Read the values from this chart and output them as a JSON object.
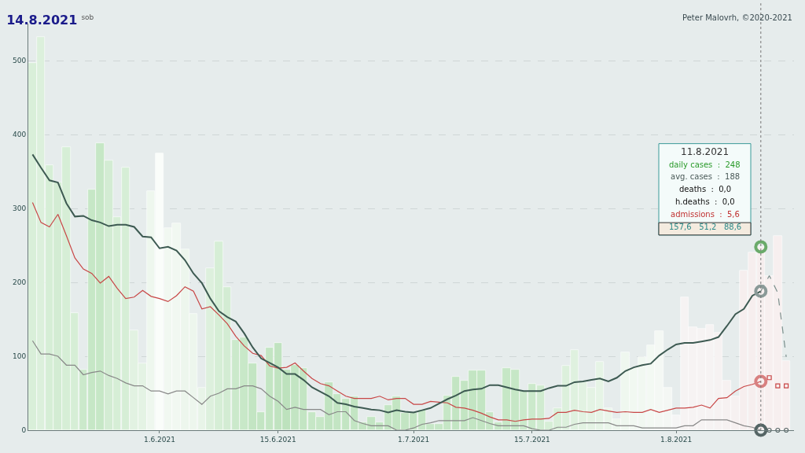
{
  "chart_data": {
    "type": "bar",
    "title": "14.8.2021",
    "subtitle": "sob",
    "x": [
      "2021-05-17",
      "2021-05-18",
      "2021-05-19",
      "2021-05-20",
      "2021-05-21",
      "2021-05-22",
      "2021-05-23",
      "2021-05-24",
      "2021-05-25",
      "2021-05-26",
      "2021-05-27",
      "2021-05-28",
      "2021-05-29",
      "2021-05-30",
      "2021-05-31",
      "2021-06-01",
      "2021-06-02",
      "2021-06-03",
      "2021-06-04",
      "2021-06-05",
      "2021-06-06",
      "2021-06-07",
      "2021-06-08",
      "2021-06-09",
      "2021-06-10",
      "2021-06-11",
      "2021-06-12",
      "2021-06-13",
      "2021-06-14",
      "2021-06-15",
      "2021-06-16",
      "2021-06-17",
      "2021-06-18",
      "2021-06-19",
      "2021-06-20",
      "2021-06-21",
      "2021-06-22",
      "2021-06-23",
      "2021-06-24",
      "2021-06-25",
      "2021-06-26",
      "2021-06-27",
      "2021-06-28",
      "2021-06-29",
      "2021-06-30",
      "2021-07-01",
      "2021-07-02",
      "2021-07-03",
      "2021-07-04",
      "2021-07-05",
      "2021-07-06",
      "2021-07-07",
      "2021-07-08",
      "2021-07-09",
      "2021-07-10",
      "2021-07-11",
      "2021-07-12",
      "2021-07-13",
      "2021-07-14",
      "2021-07-15",
      "2021-07-16",
      "2021-07-17",
      "2021-07-18",
      "2021-07-19",
      "2021-07-20",
      "2021-07-21",
      "2021-07-22",
      "2021-07-23",
      "2021-07-24",
      "2021-07-25",
      "2021-07-26",
      "2021-07-27",
      "2021-07-28",
      "2021-07-29",
      "2021-07-30",
      "2021-07-31",
      "2021-08-01",
      "2021-08-02",
      "2021-08-03",
      "2021-08-04",
      "2021-08-05",
      "2021-08-06",
      "2021-08-07",
      "2021-08-08",
      "2021-08-09",
      "2021-08-10",
      "2021-08-11",
      "2021-08-12",
      "2021-08-13",
      "2021-08-14"
    ],
    "series": [
      {
        "colors": [
          "#d9efd9",
          "#dcf0dc",
          "#d6eed6",
          "#d3ecd3",
          "#d6eed6",
          "#d6eed6",
          "#cbe9cb",
          "#c6e7c6",
          "#c6e7c6",
          "#d3ecd3",
          "#d6eed6",
          "#d6eed6",
          "#e2f2e2",
          "#e4f3e4",
          "#eef7ee",
          "#fafdfa",
          "#f1f8f1",
          "#f1f8f1",
          "#edf6ed",
          "#edf6ed",
          "#e8f4e8",
          "#ddf0dd",
          "#d6eed6",
          "#d3ecd3",
          "#cbe9cb",
          "#c8e8c8",
          "#c3e5c3",
          "#c3e5c3",
          "#c3e5c3",
          "#c0e3c0",
          "#bde2bd",
          "#c3e5c3",
          "#c3e5c3",
          "#c6e7c6",
          "#c6e7c6",
          "#c0e3c0",
          "#c3e5c3",
          "#c3e5c3",
          "#c3e5c3",
          "#c3e5c3",
          "#c3e5c3",
          "#c3e5c3",
          "#c3e5c3",
          "#c3e5c3",
          "#c3e5c3",
          "#c3e5c3",
          "#c6e7c6",
          "#c6e7c6",
          "#c6e7c6",
          "#c6e7c6",
          "#c3e5c3",
          "#c3e5c3",
          "#c3e5c3",
          "#c3e5c3",
          "#c6e7c6",
          "#c6e7c6",
          "#c6e7c6",
          "#c6e7c6",
          "#cbe9cb",
          "#cbe9cb",
          "#d0ebd0",
          "#d6eed6",
          "#d9efd9",
          "#dcf0dc",
          "#dff1df",
          "#e2f2e2",
          "#e4f3e4",
          "#e6f4e6",
          "#eaf5ea",
          "#edf6ed",
          "#eff7ef",
          "#f1f8f1",
          "#f1f8f1",
          "#f3f9f3",
          "#f4f8f4",
          "#f4f7f4",
          "#f5f5f5",
          "#f6f3f3",
          "#f6f3f3",
          "#f6f3f3",
          "#f6f3f3",
          "#f6f2f2",
          "#f6f1f1",
          "#f6f1f1",
          "#f6eeee",
          "#f6eeee",
          "#f6eeee",
          "#f7efef",
          "#f7efef",
          "#f7efef"
        ],
        "values": [
          497,
          532,
          358,
          335,
          383,
          159,
          82,
          326,
          388,
          365,
          288,
          355,
          135,
          90,
          323,
          374,
          273,
          280,
          245,
          157,
          57,
          219,
          255,
          194,
          122,
          126,
          90,
          24,
          112,
          118,
          82,
          88,
          84,
          25,
          18,
          65,
          49,
          43,
          46,
          11,
          18,
          11,
          34,
          46,
          23,
          23,
          28,
          8,
          8,
          47,
          72,
          67,
          81,
          81,
          25,
          11,
          84,
          82,
          53,
          63,
          61,
          12,
          30,
          87,
          109,
          65,
          57,
          93,
          30,
          15,
          105,
          84,
          99,
          115,
          134,
          57,
          20,
          180,
          139,
          137,
          143,
          132,
          67,
          46,
          216,
          240,
          248,
          209,
          263,
          94
        ]
      },
      {
        "type": "line",
        "color": "#888888",
        "values": [
          121,
          103,
          103,
          100,
          88,
          88,
          75,
          78,
          80,
          74,
          70,
          64,
          60,
          60,
          53,
          53,
          49,
          53,
          53,
          44,
          35,
          46,
          50,
          56,
          56,
          60,
          60,
          56,
          46,
          39,
          28,
          31,
          28,
          28,
          28,
          21,
          25,
          25,
          13,
          9,
          6,
          6,
          6,
          0,
          0,
          3,
          8,
          10,
          13,
          13,
          13,
          13,
          17,
          13,
          9,
          6,
          6,
          6,
          6,
          2,
          0,
          0,
          4,
          4,
          8,
          10,
          10,
          10,
          10,
          6,
          6,
          6,
          3,
          3,
          3,
          3,
          3,
          6,
          6,
          14,
          14,
          14,
          14,
          10,
          6,
          4,
          0,
          null,
          null,
          null
        ]
      },
      {
        "type": "line",
        "color": "#c84646",
        "values": [
          308,
          281,
          275,
          292,
          263,
          233,
          218,
          212,
          199,
          208,
          192,
          178,
          180,
          189,
          181,
          178,
          174,
          182,
          194,
          188,
          164,
          167,
          156,
          144,
          127,
          114,
          104,
          101,
          87,
          84,
          85,
          91,
          80,
          70,
          63,
          60,
          53,
          46,
          43,
          43,
          43,
          46,
          41,
          43,
          43,
          35,
          35,
          39,
          38,
          37,
          31,
          30,
          27,
          23,
          18,
          14,
          14,
          12,
          14,
          15,
          15,
          16,
          24,
          24,
          27,
          25,
          24,
          28,
          26,
          24,
          25,
          24,
          24,
          28,
          24,
          27,
          30,
          30,
          31,
          34,
          30,
          43,
          44,
          53,
          59,
          62,
          66,
          null,
          null,
          null
        ]
      },
      {
        "type": "line",
        "color": "#3d5a52",
        "values": [
          373,
          355,
          338,
          335,
          307,
          289,
          290,
          284,
          281,
          276,
          278,
          278,
          275,
          262,
          261,
          246,
          248,
          243,
          230,
          212,
          199,
          178,
          161,
          153,
          147,
          131,
          112,
          97,
          91,
          85,
          76,
          76,
          68,
          58,
          52,
          46,
          37,
          35,
          32,
          30,
          28,
          27,
          24,
          27,
          25,
          24,
          27,
          30,
          36,
          42,
          47,
          53,
          55,
          56,
          61,
          61,
          58,
          55,
          53,
          53,
          53,
          57,
          60,
          60,
          65,
          66,
          68,
          70,
          66,
          71,
          80,
          85,
          88,
          90,
          101,
          109,
          116,
          118,
          118,
          120,
          122,
          126,
          141,
          157,
          164,
          182,
          188,
          null,
          null,
          null
        ]
      },
      {
        "type": "line",
        "color": "#7a8f8c",
        "line_style": "dashed",
        "x": [
          "2021-08-11",
          "2021-08-12",
          "2021-08-13",
          "2021-08-14"
        ],
        "values": [
          188,
          209,
          186,
          99
        ]
      },
      {
        "type": "scatter",
        "color": "#c84646",
        "marker": "square",
        "x": [
          "2021-08-12",
          "2021-08-13",
          "2021-08-14"
        ],
        "values": [
          71,
          60,
          60
        ]
      },
      {
        "type": "scatter",
        "color": "#556565",
        "marker": "circle",
        "x": [
          "2021-08-12",
          "2021-08-13",
          "2021-08-14"
        ],
        "values": [
          0,
          0,
          0
        ]
      },
      {
        "type": "scatter",
        "color": "#6aaa6a",
        "marker": "circle",
        "x": [
          "2021-08-11"
        ],
        "values": [
          248
        ]
      },
      {
        "type": "scatter",
        "color": "#8a9a98",
        "marker": "circle",
        "x": [
          "2021-08-11"
        ],
        "values": [
          188
        ]
      },
      {
        "type": "scatter",
        "color": "#d88080",
        "marker": "circle",
        "x": [
          "2021-08-11"
        ],
        "values": [
          66
        ]
      },
      {
        "type": "scatter",
        "color": "#556565",
        "marker": "circle",
        "x": [
          "2021-08-11"
        ],
        "values": [
          0
        ]
      }
    ],
    "xlim": [
      "2021-05-16T12:00",
      "2021-08-14T22:00"
    ],
    "xticks": [
      {
        "value": "2021-06-01",
        "label": "1.6.2021"
      },
      {
        "value": "2021-06-15",
        "label": "15.6.2021"
      },
      {
        "value": "2021-07-01",
        "label": "1.7.2021"
      },
      {
        "value": "2021-07-15",
        "label": "15.7.2021"
      },
      {
        "value": "2021-08-01",
        "label": "1.8.2021"
      }
    ],
    "ylim": [
      0,
      550
    ],
    "yticks": [
      0,
      100,
      200,
      300,
      400,
      500
    ],
    "grid": "y",
    "ref_lines": [
      {
        "axis": "x",
        "value": "2021-08-11",
        "color": "#777777",
        "line_style": "dotted"
      }
    ],
    "annotations": [
      "Peter Malovrh, ©2020-2021",
      "11.8.2021",
      "daily cases  :  248",
      "avg. cases  :  188",
      "deaths  :  0,0",
      "h.deaths  :  0,0",
      "admissions  :  5,6",
      "157,6   51,2   88,6"
    ]
  }
}
